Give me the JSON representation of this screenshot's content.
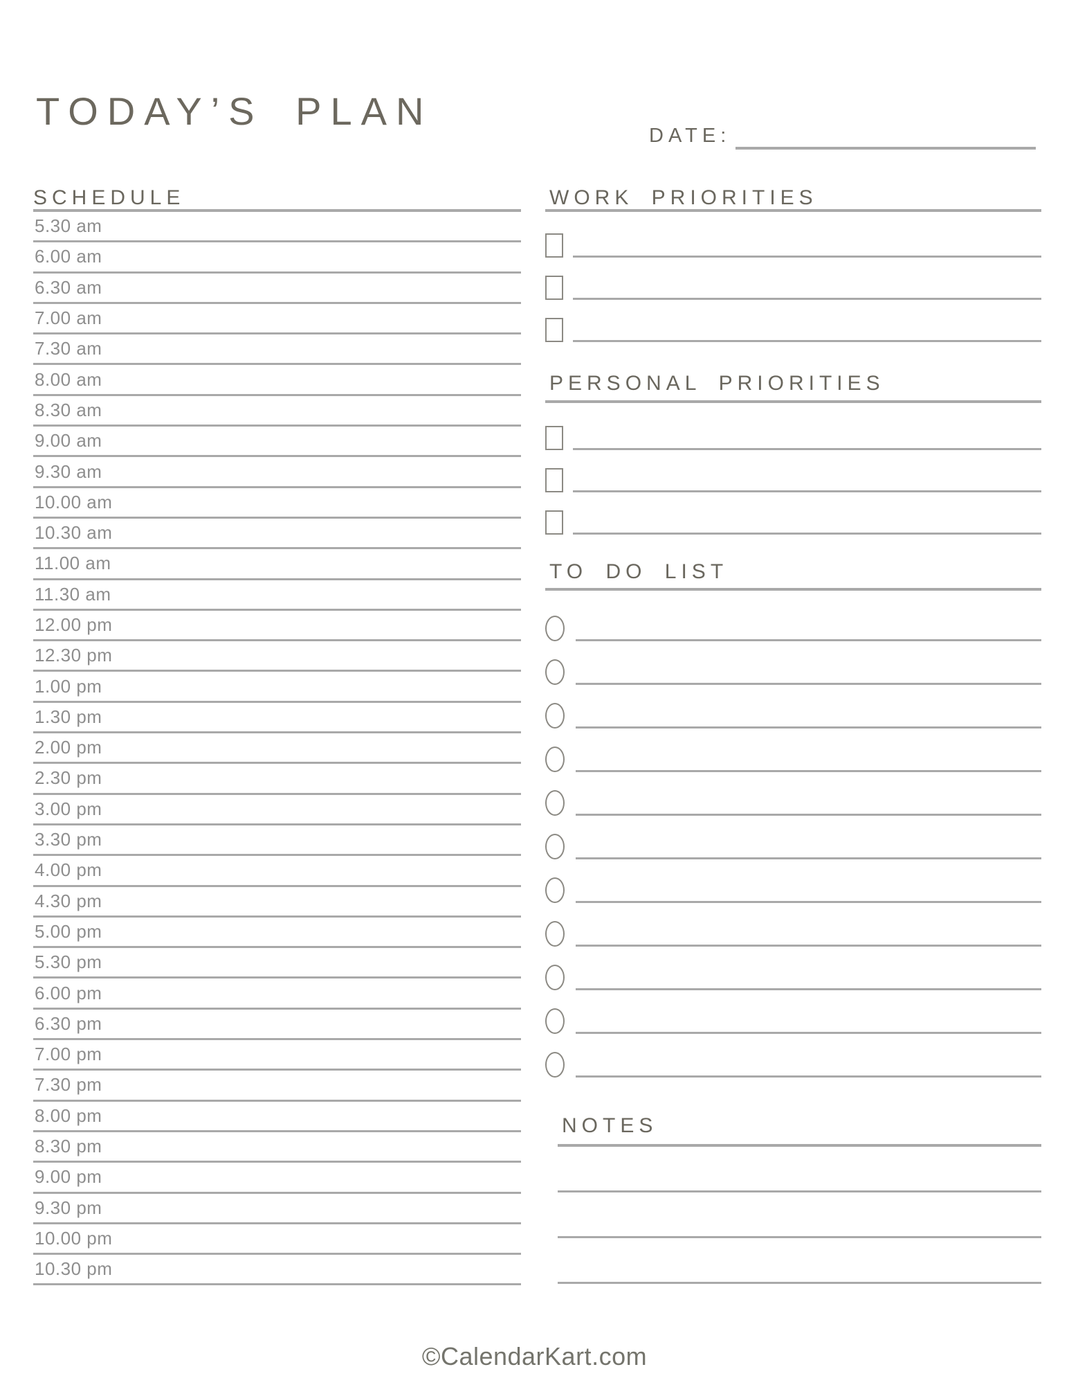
{
  "page": {
    "title": "TODAY’S PLAN",
    "footer_credit": "©CalendarKart.com",
    "colors": {
      "heading": "#6a675e",
      "title": "#6c685e",
      "rule": "#a9a9a9",
      "time": "#8e8e8e",
      "border": "#8c8a84",
      "footer": "#74746c",
      "bg": "#ffffff"
    }
  },
  "date": {
    "label": "DATE:",
    "value": ""
  },
  "schedule": {
    "heading": "SCHEDULE",
    "times": [
      "5.30 am",
      "6.00 am",
      "6.30 am",
      "7.00 am",
      "7.30 am",
      "8.00 am",
      "8.30 am",
      "9.00 am",
      "9.30 am",
      "10.00 am",
      "10.30 am",
      "11.00 am",
      "11.30 am",
      "12.00 pm",
      "12.30 pm",
      "1.00 pm",
      "1.30 pm",
      "2.00 pm",
      "2.30 pm",
      "3.00 pm",
      "3.30 pm",
      "4.00 pm",
      "4.30 pm",
      "5.00 pm",
      "5.30 pm",
      "6.00 pm",
      "6.30 pm",
      "7.00 pm",
      "7.30 pm",
      "8.00 pm",
      "8.30 pm",
      "9.00 pm",
      "9.30 pm",
      "10.00 pm",
      "10.30 pm"
    ]
  },
  "work_priorities": {
    "heading": "WORK PRIORITIES",
    "marker": "square-checkbox",
    "items": [
      "",
      "",
      ""
    ]
  },
  "personal_priorities": {
    "heading": "PERSONAL PRIORITIES",
    "marker": "square-checkbox",
    "items": [
      "",
      "",
      ""
    ]
  },
  "todo": {
    "heading": "TO DO LIST",
    "marker": "circle-bullet",
    "items": [
      "",
      "",
      "",
      "",
      "",
      "",
      "",
      "",
      "",
      "",
      ""
    ]
  },
  "notes": {
    "heading": "NOTES",
    "lines": [
      "",
      "",
      ""
    ]
  }
}
